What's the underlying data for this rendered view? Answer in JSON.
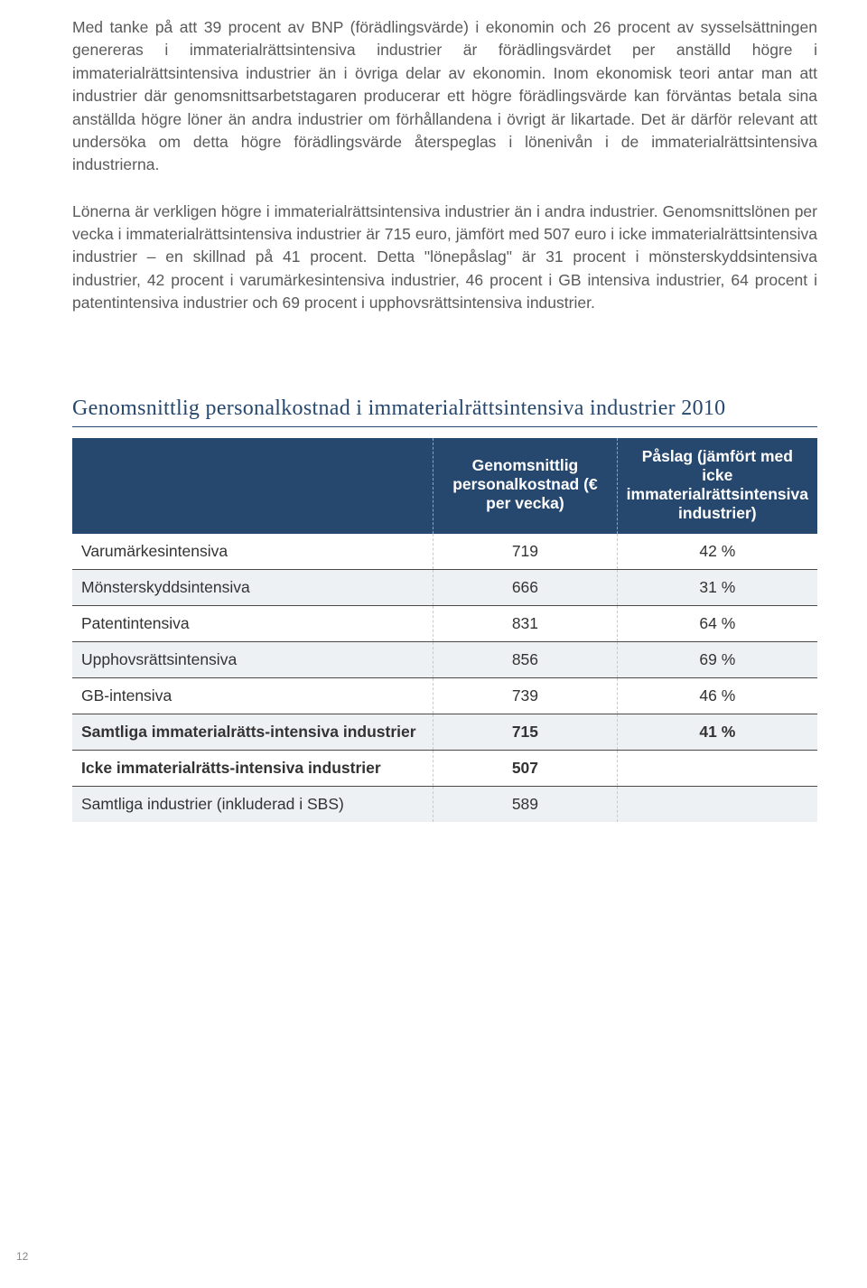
{
  "paragraphs": {
    "p1": "Med tanke på att 39 procent av BNP (förädlingsvärde) i ekonomin och 26 procent av sysselsättningen genereras i immaterialrättsintensiva industrier är förädlingsvärdet per anställd högre i immaterialrättsintensiva industrier än i övriga delar av ekonomin. Inom ekonomisk teori antar man att industrier där genomsnittsarbetstagaren producerar ett högre förädlingsvärde kan förväntas betala sina anställda högre löner än andra industrier om förhållandena i övrigt är likartade. Det är därför relevant att undersöka om detta högre förädlingsvärde återspeglas i lönenivån i de immaterialrättsintensiva industrierna.",
    "p2": "Lönerna är verkligen högre i immaterialrättsintensiva industrier än i andra industrier. Genomsnittslönen per vecka i immaterialrättsintensiva industrier är 715 euro, jämfört med 507 euro i icke immaterialrättsintensiva industrier – en skillnad på 41 procent. Detta \"lönepåslag\" är 31 procent i mönsterskyddsintensiva industrier, 42 procent i varumärkesintensiva industrier, 46 procent i GB intensiva industrier, 64 procent i patentintensiva industrier och 69 procent i upphovsrättsintensiva industrier."
  },
  "section_title": "Genomsnittlig personalkostnad i immaterialrättsintensiva industrier 2010",
  "table": {
    "header": {
      "col1": "",
      "col2": "Genomsnittlig personalkostnad (€ per vecka)",
      "col3": "Påslag (jämfört med icke immaterialrättsintensiva industrier)"
    },
    "rows": [
      {
        "label": "Varumärkesintensiva",
        "value": "719",
        "pct": "42 %",
        "shaded": false,
        "bold": false
      },
      {
        "label": "Mönsterskyddsintensiva",
        "value": "666",
        "pct": "31 %",
        "shaded": true,
        "bold": false
      },
      {
        "label": "Patentintensiva",
        "value": "831",
        "pct": "64 %",
        "shaded": false,
        "bold": false
      },
      {
        "label": "Upphovsrättsintensiva",
        "value": "856",
        "pct": "69 %",
        "shaded": true,
        "bold": false
      },
      {
        "label": "GB-intensiva",
        "value": "739",
        "pct": "46 %",
        "shaded": false,
        "bold": false
      },
      {
        "label": "Samtliga immaterialrätts-intensiva industrier",
        "value": "715",
        "pct": "41 %",
        "shaded": true,
        "bold": true
      },
      {
        "label": "Icke immaterialrätts-intensiva industrier",
        "value": "507",
        "pct": "",
        "shaded": false,
        "bold": true
      },
      {
        "label": "Samtliga industrier (inkluderad i SBS)",
        "value": "589",
        "pct": "",
        "shaded": true,
        "bold": false
      }
    ]
  },
  "page_number": "12"
}
